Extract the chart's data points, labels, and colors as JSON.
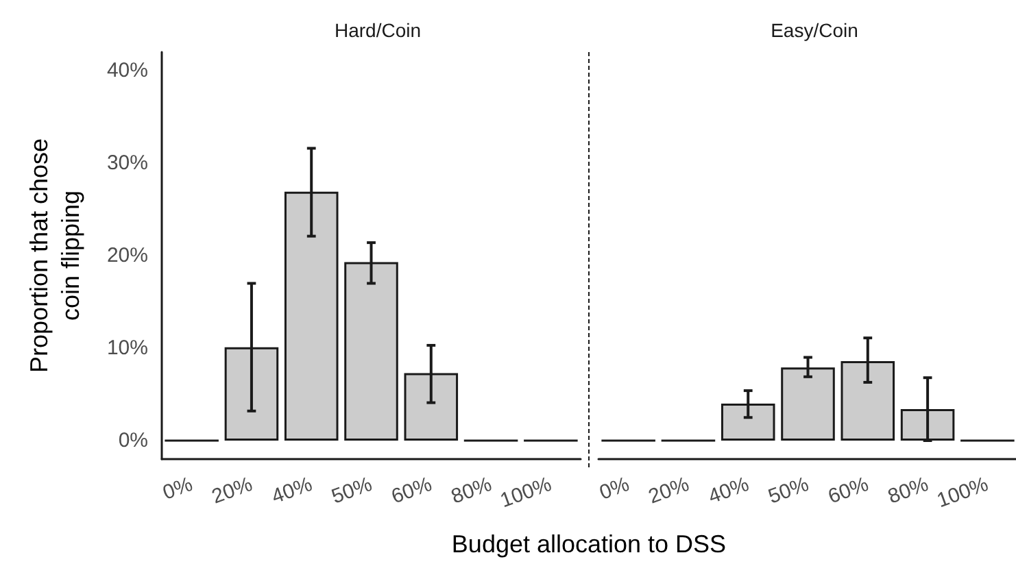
{
  "chart_data": [
    {
      "type": "bar",
      "title": "Hard/Coin",
      "xlabel": "Budget allocation to DSS",
      "ylabel": "Proportion that chose\ncoin flipping",
      "categories": [
        "0%",
        "20%",
        "40%",
        "50%",
        "60%",
        "80%",
        "100%"
      ],
      "values": [
        0,
        10.1,
        26.9,
        19.3,
        7.3,
        0,
        0
      ],
      "errors": [
        null,
        [
          3.2,
          17.0
        ],
        [
          22.1,
          31.6
        ],
        [
          17.0,
          21.4
        ],
        [
          4.1,
          10.3
        ],
        null,
        null
      ],
      "colors": [
        "#1a1a1a",
        "#cccccc",
        "#cccccc",
        "#cccccc",
        "#cccccc",
        "#1a1a1a",
        "#1a1a1a"
      ],
      "ylim": [
        -2,
        42
      ],
      "yticks": [
        {
          "value": 0,
          "label": "0%"
        },
        {
          "value": 10,
          "label": "10%"
        },
        {
          "value": 20,
          "label": "20%"
        },
        {
          "value": 30,
          "label": "30%"
        },
        {
          "value": 40,
          "label": "40%"
        }
      ]
    },
    {
      "type": "bar",
      "title": "Easy/Coin",
      "categories": [
        "0%",
        "20%",
        "40%",
        "50%",
        "60%",
        "80%",
        "100%"
      ],
      "values": [
        0,
        0,
        4.0,
        7.9,
        8.6,
        3.4,
        0
      ],
      "errors": [
        null,
        null,
        [
          2.5,
          5.4
        ],
        [
          6.9,
          9.0
        ],
        [
          6.3,
          11.1
        ],
        [
          0,
          6.8
        ],
        null
      ],
      "colors": [
        "#1a1a1a",
        "#1a1a1a",
        "#cccccc",
        "#cccccc",
        "#cccccc",
        "#cccccc",
        "#1a1a1a"
      ],
      "ylim": [
        -2,
        42
      ],
      "tick_labels": "x"
    }
  ]
}
